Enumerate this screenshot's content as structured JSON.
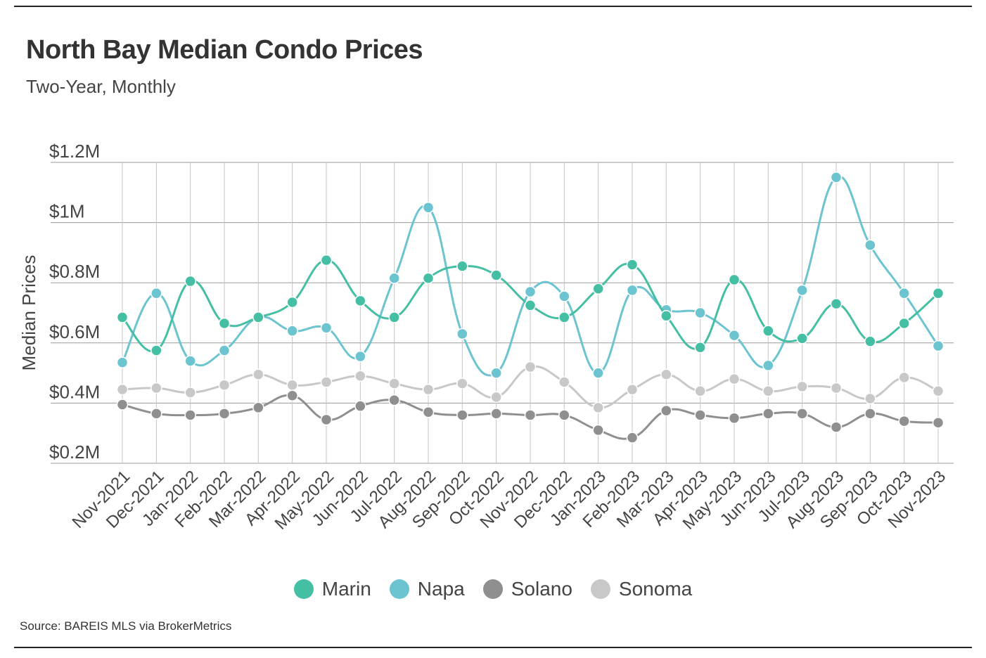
{
  "title": "North Bay Median Condo Prices",
  "subtitle": "Two-Year, Monthly",
  "source": "Source:  BAREIS MLS via BrokerMetrics",
  "chart_data": {
    "type": "line",
    "title": "North Bay Median Condo Prices",
    "subtitle": "Two-Year, Monthly",
    "xlabel": "",
    "ylabel": "Median Prices",
    "ylim": [
      0.2,
      1.2
    ],
    "yticks": [
      0.2,
      0.4,
      0.6,
      0.8,
      1.0,
      1.2
    ],
    "ytick_labels": [
      "$0.2M",
      "$0.4M",
      "$0.6M",
      "$0.8M",
      "$1M",
      "$1.2M"
    ],
    "grid": true,
    "legend_position": "bottom-center",
    "categories": [
      "Nov-2021",
      "Dec-2021",
      "Jan-2022",
      "Feb-2022",
      "Mar-2022",
      "Apr-2022",
      "May-2022",
      "Jun-2022",
      "Jul-2022",
      "Aug-2022",
      "Sep-2022",
      "Oct-2022",
      "Nov-2022",
      "Dec-2022",
      "Jan-2023",
      "Feb-2023",
      "Mar-2023",
      "Apr-2023",
      "May-2023",
      "Jun-2023",
      "Jul-2023",
      "Aug-2023",
      "Sep-2023",
      "Oct-2023",
      "Nov-2023"
    ],
    "series": [
      {
        "name": "Marin",
        "color": "#45bfa4",
        "values": [
          0.685,
          0.575,
          0.805,
          0.665,
          0.685,
          0.735,
          0.875,
          0.74,
          0.685,
          0.815,
          0.855,
          0.825,
          0.725,
          0.685,
          0.78,
          0.86,
          0.69,
          0.585,
          0.81,
          0.64,
          0.615,
          0.73,
          0.605,
          0.665,
          0.765
        ]
      },
      {
        "name": "Napa",
        "color": "#6cc4d0",
        "values": [
          0.535,
          0.765,
          0.54,
          0.575,
          0.685,
          0.64,
          0.65,
          0.555,
          0.815,
          1.05,
          0.63,
          0.5,
          0.77,
          0.755,
          0.5,
          0.775,
          0.71,
          0.7,
          0.625,
          0.525,
          0.775,
          1.15,
          0.925,
          0.765,
          0.59
        ]
      },
      {
        "name": "Solano",
        "color": "#8f8f8f",
        "values": [
          0.395,
          0.365,
          0.36,
          0.365,
          0.385,
          0.425,
          0.345,
          0.39,
          0.41,
          0.37,
          0.36,
          0.365,
          0.36,
          0.36,
          0.31,
          0.285,
          0.375,
          0.36,
          0.35,
          0.365,
          0.365,
          0.32,
          0.365,
          0.34,
          0.335
        ]
      },
      {
        "name": "Sonoma",
        "color": "#c8c8c8",
        "values": [
          0.445,
          0.45,
          0.435,
          0.46,
          0.495,
          0.46,
          0.47,
          0.49,
          0.465,
          0.445,
          0.465,
          0.42,
          0.52,
          0.47,
          0.385,
          0.445,
          0.495,
          0.44,
          0.48,
          0.44,
          0.455,
          0.45,
          0.415,
          0.485,
          0.44
        ]
      }
    ]
  }
}
